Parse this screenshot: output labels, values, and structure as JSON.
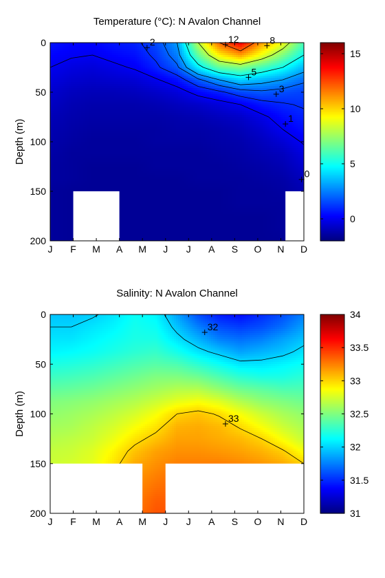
{
  "chart_data": [
    {
      "type": "contour",
      "title": "Temperature (°C): N Avalon Channel",
      "ylabel": "Depth (m)",
      "xlabel": "",
      "x_ticks": [
        "J",
        "F",
        "M",
        "A",
        "M",
        "J",
        "J",
        "A",
        "S",
        "O",
        "N",
        "D"
      ],
      "y_ticks": [
        0,
        50,
        100,
        150,
        200
      ],
      "ylim": [
        0,
        200
      ],
      "y_reversed": true,
      "colorbar": {
        "min": -2,
        "max": 16,
        "ticks": [
          0,
          5,
          10,
          15
        ]
      },
      "contour_levels": [
        0,
        1,
        2,
        3,
        5,
        8,
        12
      ],
      "contour_labels": [
        {
          "text": "2",
          "month": 4.2,
          "depth": 5
        },
        {
          "text": "12",
          "month": 7.6,
          "depth": 2
        },
        {
          "text": "8",
          "month": 9.4,
          "depth": 3
        },
        {
          "text": "5",
          "month": 8.6,
          "depth": 35
        },
        {
          "text": "3",
          "month": 9.8,
          "depth": 52
        },
        {
          "text": "1",
          "month": 10.2,
          "depth": 82
        },
        {
          "text": "0",
          "month": 10.9,
          "depth": 138
        }
      ],
      "masked_regions": [
        {
          "month_from": 1.0,
          "month_to": 3.0,
          "depth_from": 150,
          "depth_to": 200
        },
        {
          "month_from": 10.2,
          "month_to": 11.0,
          "depth_from": 150,
          "depth_to": 200
        }
      ],
      "grid": [
        [
          0.6,
          0.3,
          0.3,
          0.6,
          0.8,
          1.5,
          3.0,
          8.0,
          12.0,
          14.0,
          11.0,
          9.0,
          6.0
        ],
        [
          0.3,
          0.1,
          0.0,
          0.3,
          0.5,
          1.2,
          2.5,
          6.5,
          9.5,
          11.0,
          9.0,
          7.0,
          5.0
        ],
        [
          0.0,
          -0.3,
          -0.4,
          -0.2,
          0.1,
          0.8,
          1.8,
          4.5,
          6.5,
          7.0,
          6.0,
          5.0,
          3.5
        ],
        [
          -0.3,
          -0.6,
          -0.7,
          -0.6,
          -0.5,
          -0.1,
          0.5,
          1.8,
          3.0,
          4.0,
          3.5,
          3.0,
          2.2
        ],
        [
          -0.6,
          -0.9,
          -1.0,
          -1.0,
          -0.9,
          -0.7,
          -0.4,
          0.3,
          0.8,
          1.5,
          1.8,
          1.6,
          1.4
        ],
        [
          -0.8,
          -1.1,
          -1.2,
          -1.2,
          -1.2,
          -1.1,
          -0.9,
          -0.7,
          -0.4,
          0.0,
          0.6,
          0.9,
          1.1
        ],
        [
          -1.0,
          -1.2,
          -1.3,
          -1.3,
          -1.3,
          -1.3,
          -1.2,
          -1.1,
          -0.9,
          -0.7,
          -0.2,
          0.4,
          0.8
        ],
        [
          -1.1,
          -1.3,
          -1.4,
          -1.4,
          -1.4,
          -1.4,
          -1.3,
          -1.3,
          -1.2,
          -1.0,
          -0.6,
          0.0,
          0.5
        ],
        [
          -1.2,
          -1.4,
          -1.5,
          -1.5,
          -1.5,
          -1.4,
          -1.4,
          -1.4,
          -1.3,
          -1.2,
          -0.9,
          -0.5,
          0.1
        ],
        [
          -1.3,
          -1.5,
          -1.5,
          -1.5,
          -1.5,
          -1.5,
          -1.5,
          -1.5,
          -1.4,
          -1.3,
          -1.1,
          -0.9,
          -0.3
        ],
        [
          -1.4,
          -1.5,
          -1.6,
          -1.6,
          -1.6,
          -1.5,
          -1.5,
          -1.5,
          -1.5,
          -1.4,
          -1.3,
          -1.1,
          -0.6
        ],
        [
          -1.4,
          -1.5,
          -1.6,
          -1.6,
          -1.6,
          -1.6,
          -1.6,
          -1.5,
          -1.5,
          -1.5,
          -1.4,
          -1.3,
          -0.9
        ],
        [
          -1.5,
          -1.6,
          -1.6,
          -1.6,
          -1.6,
          -1.6,
          -1.6,
          -1.6,
          -1.6,
          -1.5,
          -1.5,
          -1.4,
          -1.1
        ],
        [
          -1.5,
          -1.6,
          -1.6,
          -1.6,
          -1.6,
          -1.6,
          -1.6,
          -1.6,
          -1.6,
          -1.5,
          -1.5,
          -1.5,
          -1.3
        ],
        [
          -1.5,
          -1.6,
          -1.6,
          -1.6,
          -1.6,
          -1.6,
          -1.6,
          -1.6,
          -1.6,
          -1.6,
          -1.6,
          -1.5,
          -1.4
        ],
        [
          -1.5,
          -1.6,
          -1.6,
          -1.6,
          -1.6,
          -1.6,
          -1.6,
          -1.6,
          -1.6,
          -1.6,
          -1.6,
          -1.5,
          -1.5
        ],
        [
          -1.5,
          -1.6,
          -1.6,
          -1.6,
          -1.6,
          -1.6,
          -1.6,
          -1.6,
          -1.6,
          -1.6,
          -1.6,
          -1.6,
          -1.5
        ]
      ]
    },
    {
      "type": "contour",
      "title": "Salinity: N Avalon Channel",
      "ylabel": "Depth (m)",
      "xlabel": "",
      "x_ticks": [
        "J",
        "F",
        "M",
        "A",
        "M",
        "J",
        "J",
        "A",
        "S",
        "O",
        "N",
        "D"
      ],
      "y_ticks": [
        0,
        50,
        100,
        150,
        200
      ],
      "ylim": [
        0,
        200
      ],
      "y_reversed": true,
      "colorbar": {
        "min": 31,
        "max": 34,
        "ticks": [
          31,
          31.5,
          32,
          32.5,
          33,
          33.5,
          34
        ]
      },
      "contour_levels": [
        32,
        33
      ],
      "contour_labels": [
        {
          "text": "32",
          "month": 6.7,
          "depth": 18
        },
        {
          "text": "33",
          "month": 7.6,
          "depth": 110
        }
      ],
      "masked_regions": [
        {
          "month_from": 0.0,
          "month_to": 4.0,
          "depth_from": 150,
          "depth_to": 200
        },
        {
          "month_from": 5.0,
          "month_to": 11.0,
          "depth_from": 150,
          "depth_to": 200
        }
      ],
      "grid": [
        [
          31.95,
          31.95,
          31.98,
          32.05,
          32.15,
          32.1,
          31.85,
          31.6,
          31.45,
          31.4,
          31.5,
          31.6,
          31.75
        ],
        [
          32.0,
          32.0,
          32.05,
          32.1,
          32.18,
          32.15,
          31.95,
          31.75,
          31.6,
          31.55,
          31.6,
          31.7,
          31.85
        ],
        [
          32.05,
          32.05,
          32.1,
          32.15,
          32.2,
          32.2,
          32.05,
          31.9,
          31.75,
          31.7,
          31.75,
          31.85,
          31.95
        ],
        [
          32.1,
          32.12,
          32.15,
          32.2,
          32.25,
          32.28,
          32.18,
          32.05,
          31.95,
          31.85,
          31.9,
          31.95,
          32.05
        ],
        [
          32.2,
          32.22,
          32.25,
          32.3,
          32.35,
          32.38,
          32.35,
          32.25,
          32.15,
          32.05,
          32.05,
          32.1,
          32.15
        ],
        [
          32.3,
          32.32,
          32.35,
          32.4,
          32.45,
          32.5,
          32.5,
          32.45,
          32.35,
          32.25,
          32.2,
          32.2,
          32.25
        ],
        [
          32.4,
          32.42,
          32.45,
          32.5,
          32.55,
          32.6,
          32.65,
          32.65,
          32.55,
          32.45,
          32.4,
          32.35,
          32.35
        ],
        [
          32.5,
          32.52,
          32.55,
          32.6,
          32.65,
          32.72,
          32.8,
          32.85,
          32.78,
          32.65,
          32.55,
          32.5,
          32.45
        ],
        [
          32.55,
          32.58,
          32.62,
          32.68,
          32.75,
          32.85,
          33.0,
          33.05,
          32.98,
          32.85,
          32.72,
          32.62,
          32.55
        ],
        [
          32.6,
          32.62,
          32.68,
          32.75,
          32.85,
          32.95,
          33.1,
          33.12,
          33.08,
          32.98,
          32.85,
          32.72,
          32.62
        ],
        [
          32.65,
          32.68,
          32.72,
          32.82,
          32.95,
          33.05,
          33.15,
          33.15,
          33.12,
          33.08,
          33.0,
          32.85,
          32.7
        ],
        [
          32.7,
          32.72,
          32.78,
          32.9,
          33.05,
          33.15,
          33.2,
          33.2,
          33.18,
          33.15,
          33.1,
          33.02,
          32.85
        ],
        [
          32.72,
          32.75,
          32.8,
          32.95,
          33.12,
          33.2,
          33.25,
          33.25,
          33.25,
          33.22,
          33.18,
          33.12,
          33.0
        ],
        [
          32.75,
          32.78,
          32.85,
          33.0,
          33.18,
          33.25,
          33.3,
          33.3,
          33.3,
          33.28,
          33.25,
          33.2,
          33.1
        ],
        [
          32.78,
          32.8,
          32.88,
          33.05,
          33.22,
          33.3,
          33.32,
          33.32,
          33.32,
          33.3,
          33.28,
          33.25,
          33.18
        ],
        [
          32.8,
          32.82,
          32.9,
          33.08,
          33.25,
          33.35,
          33.35,
          33.35,
          33.35,
          33.32,
          33.3,
          33.28,
          33.22
        ],
        [
          32.82,
          32.85,
          32.92,
          33.1,
          33.28,
          33.38,
          33.38,
          33.38,
          33.38,
          33.35,
          33.32,
          33.3,
          33.25
        ]
      ]
    }
  ]
}
